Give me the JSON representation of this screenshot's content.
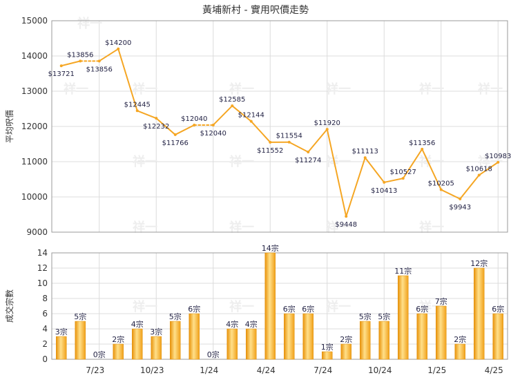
{
  "chart_data": [
    {
      "type": "line",
      "title": "黃埔新村 - 實用呎價走勢",
      "ylabel": "平均呎價",
      "ylim": [
        9000,
        15000
      ],
      "yticks": [
        "9000",
        "10000",
        "11000",
        "12000",
        "13000",
        "14000",
        "15000"
      ],
      "grid": true,
      "color": "#f5a623",
      "series": [
        {
          "values": [
            13721,
            13856,
            13856,
            14200,
            12445,
            12232,
            11766,
            12040,
            12040,
            12585,
            12144,
            11552,
            11554,
            11274,
            11920,
            9448,
            11113,
            10413,
            10527,
            11356,
            10205,
            9943,
            10618,
            10983
          ],
          "labels": [
            "$13721",
            "$13856",
            "$13856",
            "$14200",
            "$12445",
            "$12232",
            "$11766",
            "$12040",
            "$12040",
            "$12585",
            "$12144",
            "$11552",
            "$11554",
            "$11274",
            "$11920",
            "$9448",
            "$11113",
            "$10413",
            "$10527",
            "$11356",
            "$10205",
            "$9943",
            "$10618",
            "$10983"
          ]
        }
      ]
    },
    {
      "type": "bar",
      "ylabel": "成交宗數",
      "ylim": [
        0,
        14
      ],
      "yticks": [
        "0",
        "2",
        "4",
        "6",
        "8",
        "10",
        "12",
        "14"
      ],
      "grid": true,
      "color": "#f5a623",
      "x_tick_labels": [
        "7/23",
        "10/23",
        "1/24",
        "4/24",
        "7/24",
        "10/24",
        "1/25",
        "4/25"
      ],
      "series": [
        {
          "values": [
            3,
            5,
            0,
            2,
            4,
            3,
            5,
            6,
            0,
            4,
            4,
            14,
            6,
            6,
            1,
            2,
            5,
            5,
            11,
            6,
            7,
            2,
            12,
            6
          ],
          "labels": [
            "3宗",
            "5宗",
            "0宗",
            "2宗",
            "4宗",
            "3宗",
            "5宗",
            "6宗",
            "0宗",
            "4宗",
            "4宗",
            "14宗",
            "6宗",
            "6宗",
            "1宗",
            "2宗",
            "5宗",
            "5宗",
            "11宗",
            "6宗",
            "7宗",
            "2宗",
            "12宗",
            "6宗"
          ]
        }
      ]
    }
  ],
  "watermark": "祥一"
}
